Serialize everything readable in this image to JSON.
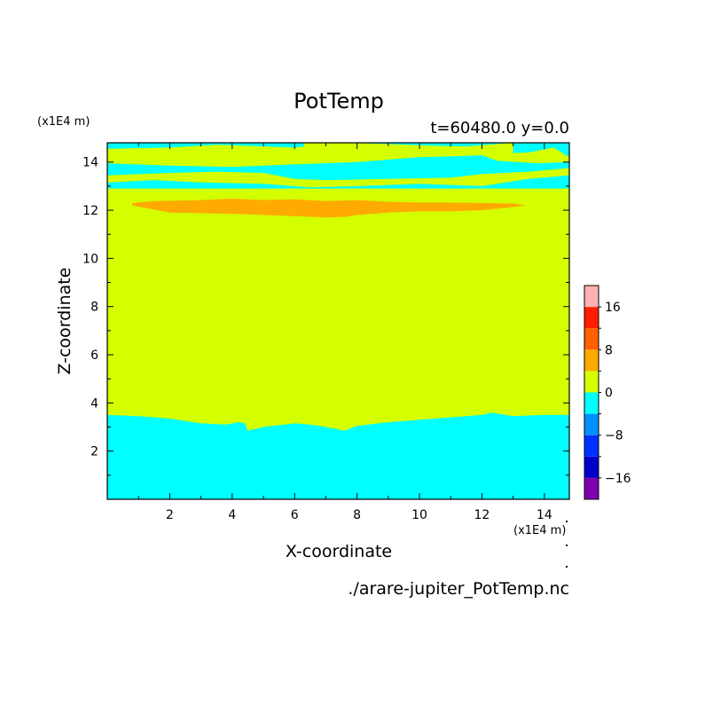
{
  "chart_data": {
    "type": "heatmap",
    "title": "PotTemp",
    "subtitle": "t=60480.0 y=0.0",
    "xlabel": "X-coordinate",
    "ylabel": "Z-coordinate",
    "x_unit": "(x1E4 m)",
    "y_unit": "(x1E4 m)",
    "source_file": "./arare-jupiter_PotTemp.nc",
    "xlim": [
      0,
      14.8
    ],
    "ylim": [
      0,
      14.8
    ],
    "x_ticks": [
      2,
      4,
      6,
      8,
      10,
      12,
      14
    ],
    "y_ticks": [
      2,
      4,
      6,
      8,
      10,
      12,
      14
    ],
    "colorbar": {
      "placement": "right",
      "levels": [
        -20,
        -16,
        -12,
        -8,
        -4,
        0,
        4,
        8,
        12,
        16,
        20
      ],
      "colors": [
        "#8000b0",
        "#0000c8",
        "#0030ff",
        "#0090ff",
        "#00ffff",
        "#d4ff00",
        "#ffaa00",
        "#ff6000",
        "#ff1f00",
        "#ffb0b0"
      ],
      "tick_labels": [
        {
          "value": -16,
          "label": "−16"
        },
        {
          "value": -8,
          "label": "−8"
        },
        {
          "value": 0,
          "label": "0"
        },
        {
          "value": 8,
          "label": "8"
        },
        {
          "value": 16,
          "label": "16"
        }
      ]
    },
    "regions": [
      {
        "name": "lower-cold-layer",
        "range": [
          -4,
          0
        ],
        "color": "#00ffff",
        "top_z": [
          [
            0,
            3.5
          ],
          [
            1,
            3.45
          ],
          [
            2,
            3.35
          ],
          [
            3,
            3.15
          ],
          [
            3.8,
            3.1
          ],
          [
            4.2,
            3.2
          ],
          [
            4.4,
            3.15
          ],
          [
            4.5,
            2.85
          ],
          [
            5,
            3.0
          ],
          [
            6,
            3.15
          ],
          [
            6.5,
            3.1
          ],
          [
            7,
            3.0
          ],
          [
            7.6,
            2.85
          ],
          [
            7.8,
            2.95
          ],
          [
            8,
            3.05
          ],
          [
            9,
            3.2
          ],
          [
            10,
            3.3
          ],
          [
            11,
            3.4
          ],
          [
            12,
            3.5
          ],
          [
            12.3,
            3.6
          ],
          [
            13,
            3.45
          ],
          [
            14,
            3.5
          ],
          [
            14.8,
            3.5
          ]
        ]
      },
      {
        "name": "warm-band",
        "range": [
          0,
          4
        ],
        "color": "#d4ff00",
        "z": [
          3.5,
          12.0
        ]
      },
      {
        "name": "upper-warm-lens",
        "range": [
          4,
          8
        ],
        "color": "#ffaa00",
        "bottom_z": [
          [
            0.8,
            12.2
          ],
          [
            2,
            11.9
          ],
          [
            4,
            11.85
          ],
          [
            6,
            11.75
          ],
          [
            7,
            11.7
          ],
          [
            7.6,
            11.72
          ],
          [
            8,
            11.8
          ],
          [
            9,
            11.9
          ],
          [
            10,
            11.95
          ],
          [
            11,
            11.95
          ],
          [
            12,
            12.0
          ],
          [
            12.8,
            12.1
          ],
          [
            13.4,
            12.2
          ]
        ],
        "top_z": [
          [
            0.8,
            12.3
          ],
          [
            1.5,
            12.38
          ],
          [
            3,
            12.42
          ],
          [
            4,
            12.48
          ],
          [
            5,
            12.42
          ],
          [
            6,
            12.45
          ],
          [
            7,
            12.38
          ],
          [
            8,
            12.42
          ],
          [
            9,
            12.35
          ],
          [
            10,
            12.32
          ],
          [
            11,
            12.32
          ],
          [
            12,
            12.3
          ],
          [
            13,
            12.28
          ],
          [
            13.4,
            12.2
          ]
        ]
      },
      {
        "name": "upper-cold-layer",
        "range": [
          -4,
          0
        ],
        "color": "#00ffff",
        "z": [
          12.9,
          14.8
        ]
      }
    ]
  }
}
